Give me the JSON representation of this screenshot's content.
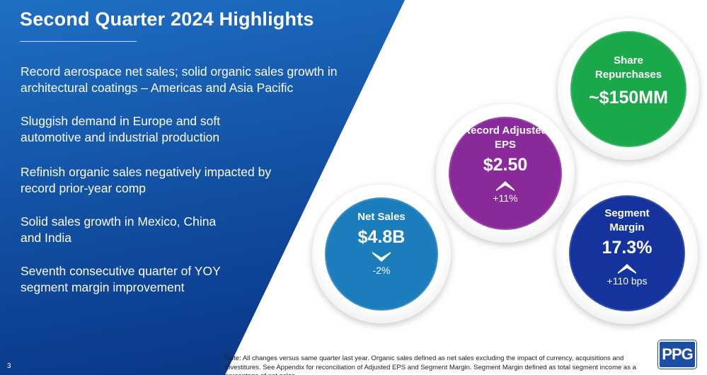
{
  "slide": {
    "title": "Second Quarter 2024 Highlights",
    "page_number": "3",
    "note": "Note: All changes versus same quarter last year. Organic sales defined as net sales excluding the impact of currency, acquisitions and divestitures. See Appendix for reconciliation of Adjusted  EPS and Segment Margin. Segment Margin defined as total segment income as a percentage of net sales."
  },
  "bullets": [
    "Record aerospace net sales; solid organic sales growth in architectural coatings – Americas and Asia Pacific",
    "Sluggish demand in Europe and soft automotive and industrial production",
    "Refinish organic sales negatively impacted by record prior-year comp",
    "Solid sales growth in Mexico, China and India",
    "Seventh consecutive quarter of YOY segment margin improvement"
  ],
  "metrics": {
    "share_repurchases": {
      "label": "Share Repurchases",
      "value": "~$150MM",
      "color": "#1aa84b"
    },
    "adjusted_eps": {
      "label": "Record Adjusted EPS",
      "value": "$2.50",
      "change": "+11%",
      "direction": "up",
      "color": "#8a2a9a"
    },
    "net_sales": {
      "label": "Net Sales",
      "value": "$4.8B",
      "change": "-2%",
      "direction": "down",
      "color": "#1b7dbb"
    },
    "segment_margin": {
      "label": "Segment Margin",
      "value": "17.3%",
      "change": "+110 bps",
      "direction": "up",
      "color": "#14339c"
    }
  },
  "logo": {
    "text": "PPG",
    "color": "#1c4fa3"
  }
}
